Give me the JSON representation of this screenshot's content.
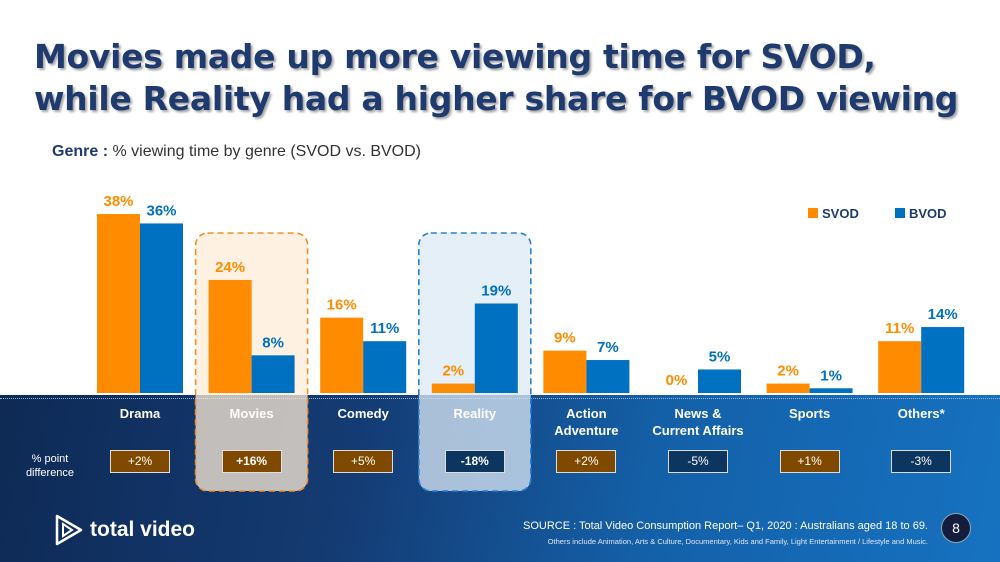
{
  "title": "Movies made up more viewing time for SVOD, while Reality had a higher share for BVOD viewing",
  "subtitle": {
    "bold": "Genre :",
    "text": " % viewing time by genre (SVOD vs. BVOD)"
  },
  "chart_data": {
    "type": "bar",
    "categories": [
      "Drama",
      "Movies",
      "Comedy",
      "Reality",
      "Action Adventure",
      "News & Current Affairs",
      "Sports",
      "Others*"
    ],
    "series": [
      {
        "name": "SVOD",
        "color": "#ff8c00",
        "values": [
          38,
          24,
          16,
          2,
          9,
          0,
          2,
          11
        ],
        "labels": [
          "38%",
          "24%",
          "16%",
          "2%",
          "9%",
          "0%",
          "2%",
          "11%"
        ]
      },
      {
        "name": "BVOD",
        "color": "#0070c0",
        "values": [
          36,
          8,
          11,
          19,
          7,
          5,
          1,
          14
        ],
        "labels": [
          "36%",
          "8%",
          "11%",
          "19%",
          "7%",
          "5%",
          "1%",
          "14%"
        ]
      }
    ],
    "legend_position": "top-right",
    "highlighted": [
      "Movies",
      "Reality"
    ],
    "differences": [
      "+2%",
      "+16%",
      "+5%",
      "-18%",
      "+2%",
      "-5%",
      "+1%",
      "-3%"
    ],
    "difference_label": "% point difference"
  },
  "colors": {
    "positive": "#7f4a00",
    "negative": "#0c3560"
  },
  "brand": "total video",
  "source": "SOURCE : Total Video Consumption Report– Q1, 2020 : Australians aged 18 to 69.",
  "note": "Others include Animation, Arts & Culture, Documentary, Kids and Family, Light Entertainment / Lifestyle and Music.",
  "page_number": "8"
}
